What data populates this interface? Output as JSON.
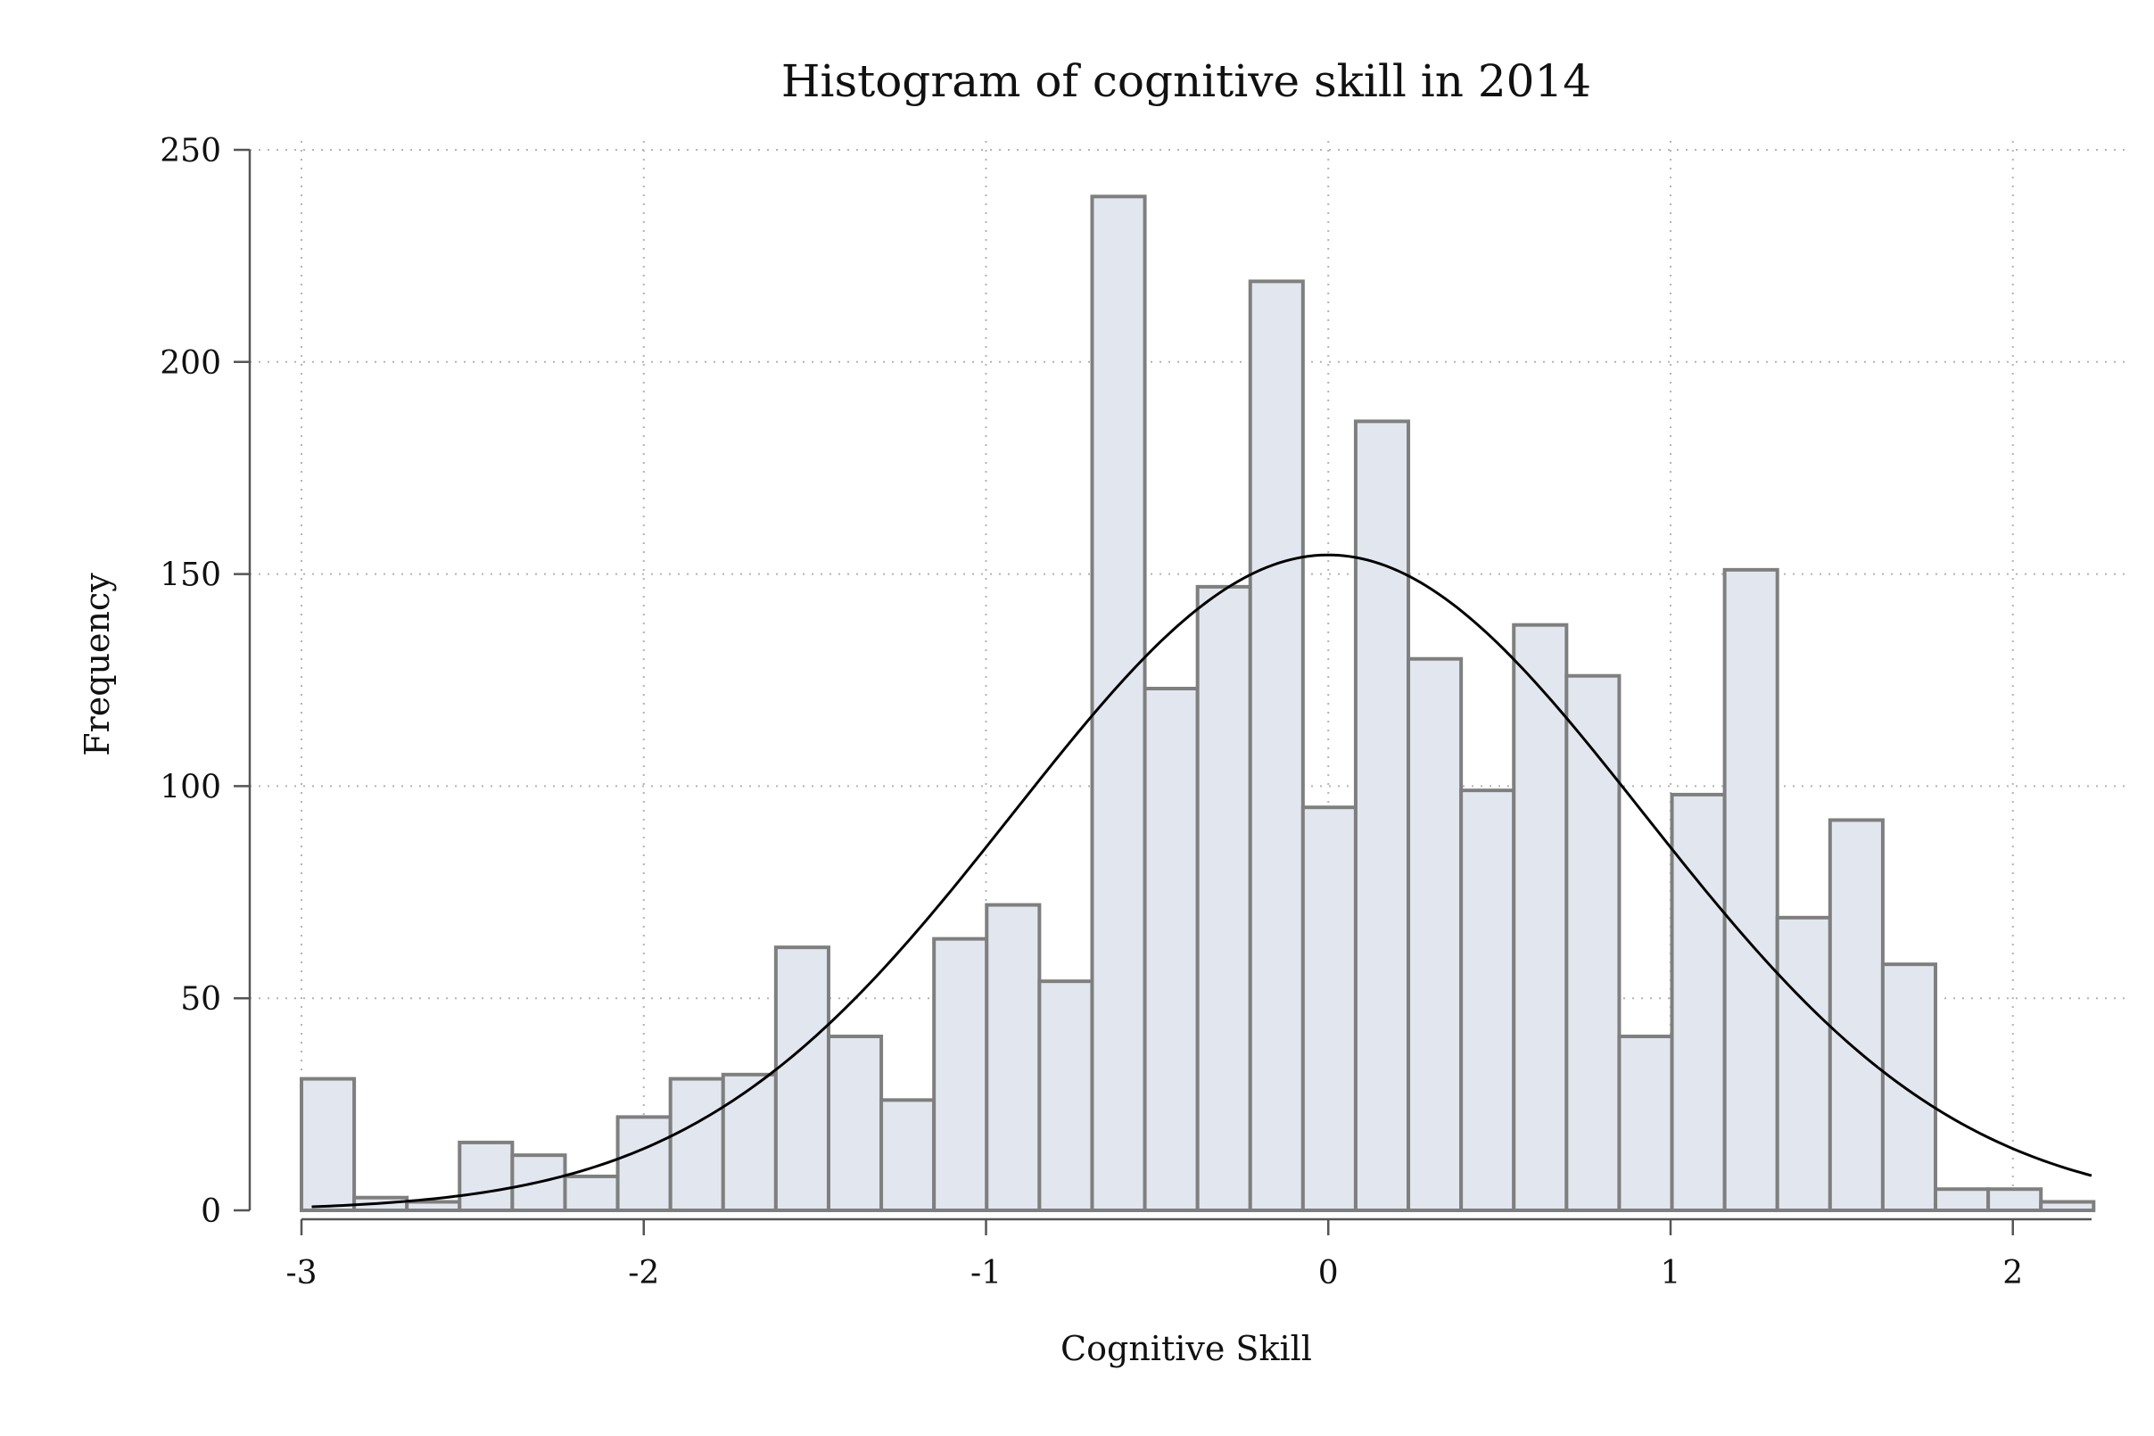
{
  "chart_data": {
    "type": "bar",
    "title": "Histogram of cognitive skill in 2014",
    "xlabel": "Cognitive Skill",
    "ylabel": "Frequency",
    "xlim": [
      -3,
      2.23
    ],
    "ylim": [
      0,
      250
    ],
    "x_ticks": [
      "-3",
      "-2",
      "-1",
      "0",
      "1",
      "2"
    ],
    "y_ticks": [
      "0",
      "50",
      "100",
      "150",
      "200",
      "250"
    ],
    "grid": true,
    "bin_width": 0.154,
    "bin_starts": [
      -3.0,
      -2.846,
      -2.692,
      -2.538,
      -2.384,
      -2.23,
      -2.076,
      -1.922,
      -1.768,
      -1.614,
      -1.46,
      -1.306,
      -1.152,
      -0.998,
      -0.844,
      -0.69,
      -0.536,
      -0.382,
      -0.228,
      -0.074,
      0.08,
      0.234,
      0.388,
      0.542,
      0.696,
      0.85,
      1.004,
      1.158,
      1.312,
      1.466,
      1.62,
      1.774,
      1.928,
      2.082
    ],
    "values": [
      31,
      3,
      2,
      16,
      13,
      8,
      22,
      31,
      32,
      62,
      41,
      26,
      64,
      72,
      54,
      239,
      123,
      147,
      219,
      95,
      186,
      130,
      99,
      138,
      126,
      41,
      98,
      151,
      69,
      92,
      58,
      5,
      5,
      2
    ],
    "normal_curve": {
      "mean": 0.0,
      "sd": 0.92,
      "peak": 154.5
    }
  }
}
